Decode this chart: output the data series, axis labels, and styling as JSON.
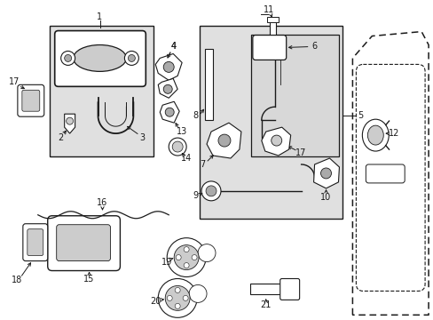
{
  "bg_color": "#ffffff",
  "line_color": "#1a1a1a",
  "box_fill": "#e0e0e0",
  "font_size": 7.0,
  "fig_w": 4.89,
  "fig_h": 3.6,
  "dpi": 100
}
